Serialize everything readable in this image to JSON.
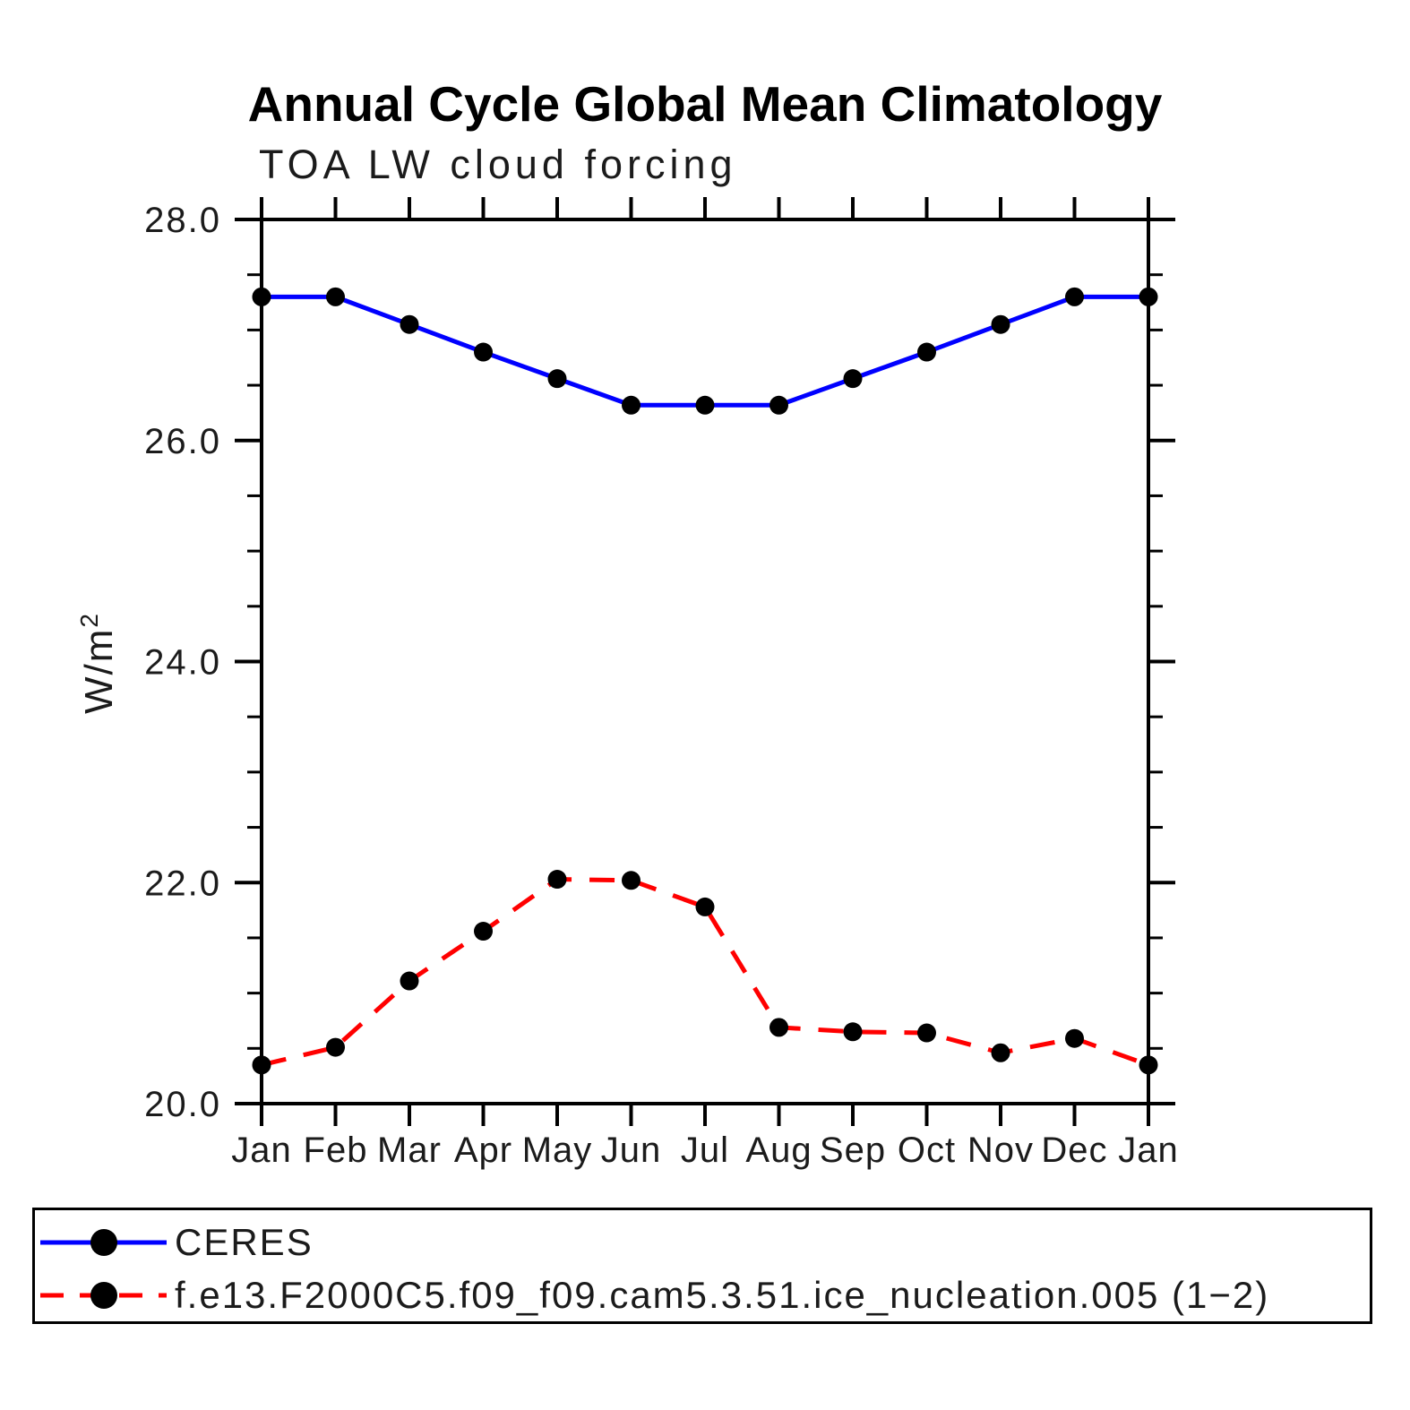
{
  "page": {
    "background": "#ffffff",
    "text_color": "#1b1b1b"
  },
  "header": {
    "title": "Annual Cycle Global Mean Climatology",
    "subtitle": "TOA LW cloud forcing"
  },
  "axis": {
    "y_unit_base": "W/m",
    "y_unit_sup": "2"
  },
  "chart_data": {
    "type": "line",
    "title": "Annual Cycle Global Mean Climatology",
    "subtitle": "TOA LW cloud forcing",
    "xlabel": "",
    "ylabel": "W/m²",
    "categories": [
      "Jan",
      "Feb",
      "Mar",
      "Apr",
      "May",
      "Jun",
      "Jul",
      "Aug",
      "Sep",
      "Oct",
      "Nov",
      "Dec",
      "Jan"
    ],
    "ylim": [
      20.0,
      28.0
    ],
    "y_major_step": 2.0,
    "y_minor_step": 0.5,
    "y_tick_labels": [
      "20.0",
      "22.0",
      "24.0",
      "26.0",
      "28.0"
    ],
    "grid": false,
    "legend_position": "bottom",
    "frame_color": "#000000",
    "series": [
      {
        "name": "CERES",
        "color": "#0000ff",
        "style": "solid",
        "marker": "circle",
        "marker_color": "#000000",
        "values": [
          27.3,
          27.3,
          27.05,
          26.8,
          26.56,
          26.32,
          26.32,
          26.32,
          26.56,
          26.8,
          27.05,
          27.3,
          27.3
        ]
      },
      {
        "name": "f.e13.F2000C5.f09_f09.cam5.3.51.ice_nucleation.005 (1−2)",
        "color": "#ff0000",
        "style": "dashed",
        "marker": "circle",
        "marker_color": "#000000",
        "values": [
          20.35,
          20.51,
          21.11,
          21.56,
          22.03,
          22.02,
          21.78,
          20.69,
          20.65,
          20.64,
          20.46,
          20.59,
          20.35
        ]
      }
    ]
  }
}
